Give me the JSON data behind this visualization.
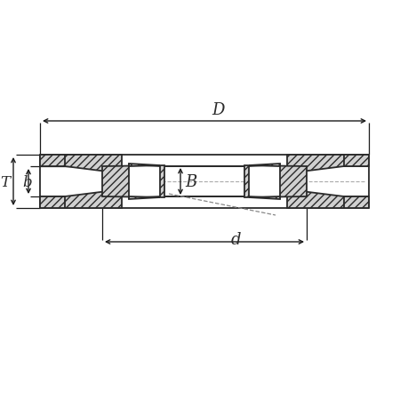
{
  "bg_color": "#ffffff",
  "line_color": "#2a2a2a",
  "figsize": [
    4.6,
    4.6
  ],
  "dpi": 100,
  "labels": {
    "T": "T",
    "b": "b",
    "B": "B",
    "d": "d",
    "D": "D"
  },
  "font_size": 12,
  "arrow_color": "#1a1a1a",
  "hatch": "////",
  "hatch_color": "#555555"
}
